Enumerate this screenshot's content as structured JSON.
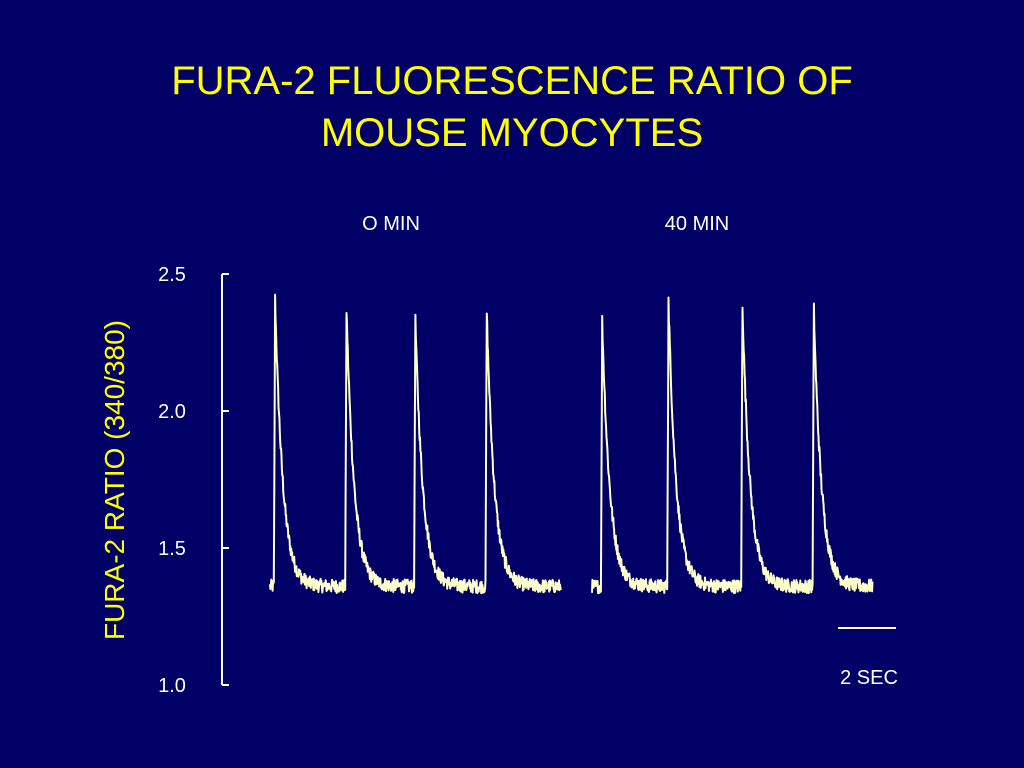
{
  "title": {
    "line1": "FURA-2 FLUORESCENCE RATIO OF",
    "line2": "MOUSE MYOCYTES"
  },
  "colors": {
    "background": "#000066",
    "title": "#ffff00",
    "axis_text": "#ffffff",
    "trace": "#ffffcc"
  },
  "chart_data": {
    "type": "line",
    "title": "FURA-2 FLUORESCENCE RATIO OF MOUSE MYOCYTES",
    "ylabel": "FURA-2 RATIO (340/380)",
    "xlabel": "",
    "ylim": [
      1.0,
      2.5
    ],
    "yticks": [
      "2.5",
      "2.0",
      "1.5",
      "1.0"
    ],
    "grid": false,
    "scale_bar": {
      "label": "2 SEC",
      "seconds": 2
    },
    "panels": [
      {
        "name": "O MIN",
        "baseline": 1.36,
        "peak_times_s": [
          0.2,
          3.0,
          5.7,
          8.5
        ],
        "peaks": [
          2.41,
          2.37,
          2.33,
          2.36
        ],
        "duration_s": 11.4
      },
      {
        "name": "40 MIN",
        "baseline": 1.36,
        "peak_times_s": [
          0.4,
          3.0,
          5.9,
          8.7
        ],
        "peaks": [
          2.33,
          2.4,
          2.39,
          2.37
        ],
        "duration_s": 11.0
      }
    ]
  }
}
